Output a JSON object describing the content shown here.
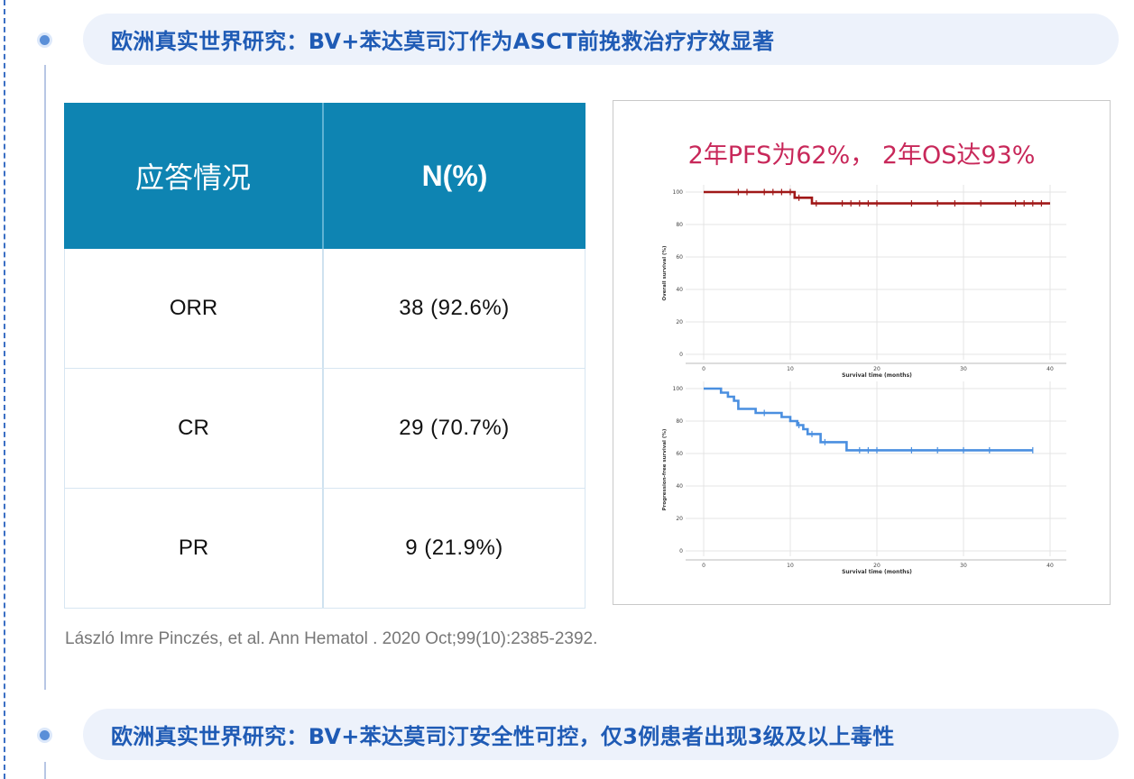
{
  "section1": {
    "title": "欧洲真实世界研究：BV+苯达莫司汀作为ASCT前挽救治疗疗效显著"
  },
  "section2": {
    "title": "欧洲真实世界研究：BV+苯达莫司汀安全性可控，仅3例患者出现3级及以上毒性"
  },
  "table": {
    "headers": [
      "应答情况",
      "N(%)"
    ],
    "rows": [
      {
        "label": "ORR",
        "value": "38 (92.6%)"
      },
      {
        "label": "CR",
        "value": "29 (70.7%)"
      },
      {
        "label": "PR",
        "value": "9 (21.9%)"
      }
    ]
  },
  "figure": {
    "caption": "2年PFS为62%， 2年OS达93%"
  },
  "citation": "László Imre Pinczés, et al. Ann Hematol . 2020 Oct;99(10):2385-2392.",
  "colors": {
    "os_line": "#a01818",
    "pfs_line": "#4a8fe0",
    "header_bg": "#0e84b2",
    "title_text": "#1f5bb5",
    "caption": "#c8285a"
  },
  "chart_data": [
    {
      "type": "line",
      "ylabel": "Overall survival (%)",
      "xlabel": "Survival time (months)",
      "xlim": [
        0,
        40
      ],
      "ylim": [
        0,
        100
      ],
      "xticks": [
        0,
        10,
        20,
        30,
        40
      ],
      "yticks": [
        0,
        20,
        40,
        60,
        80,
        100
      ],
      "grid": true,
      "series": [
        {
          "step": true,
          "x": [
            0,
            10.5,
            10.5,
            12.5,
            12.5,
            40
          ],
          "y": [
            100,
            100,
            96.5,
            96.5,
            93,
            93
          ],
          "censor_x": [
            4,
            5,
            7,
            8,
            9,
            10,
            11,
            13,
            16,
            17,
            18,
            19,
            20,
            24,
            27,
            29,
            32,
            36,
            37,
            38,
            39
          ]
        }
      ]
    },
    {
      "type": "line",
      "ylabel": "Progression-free survival (%)",
      "xlabel": "Survival time (months)",
      "xlim": [
        0,
        40
      ],
      "ylim": [
        0,
        100
      ],
      "xticks": [
        0,
        10,
        20,
        30,
        40
      ],
      "yticks": [
        0,
        20,
        40,
        60,
        80,
        100
      ],
      "grid": true,
      "series": [
        {
          "step": true,
          "x": [
            0,
            2,
            2,
            2.8,
            2.8,
            3.5,
            3.5,
            4,
            4,
            6,
            6,
            9,
            9,
            10,
            10,
            10.8,
            10.8,
            11.5,
            11.5,
            12,
            12,
            13.5,
            13.5,
            16.5,
            16.5,
            38
          ],
          "y": [
            100,
            100,
            97.5,
            97.5,
            95,
            95,
            92.5,
            92.5,
            87.5,
            87.5,
            85,
            85,
            82.5,
            82.5,
            80,
            80,
            77.5,
            77.5,
            75,
            75,
            72,
            72,
            67,
            67,
            62,
            62
          ],
          "censor_x": [
            7,
            11,
            12.5,
            14,
            18,
            19,
            20,
            24,
            27,
            30,
            33,
            38
          ]
        }
      ]
    }
  ]
}
